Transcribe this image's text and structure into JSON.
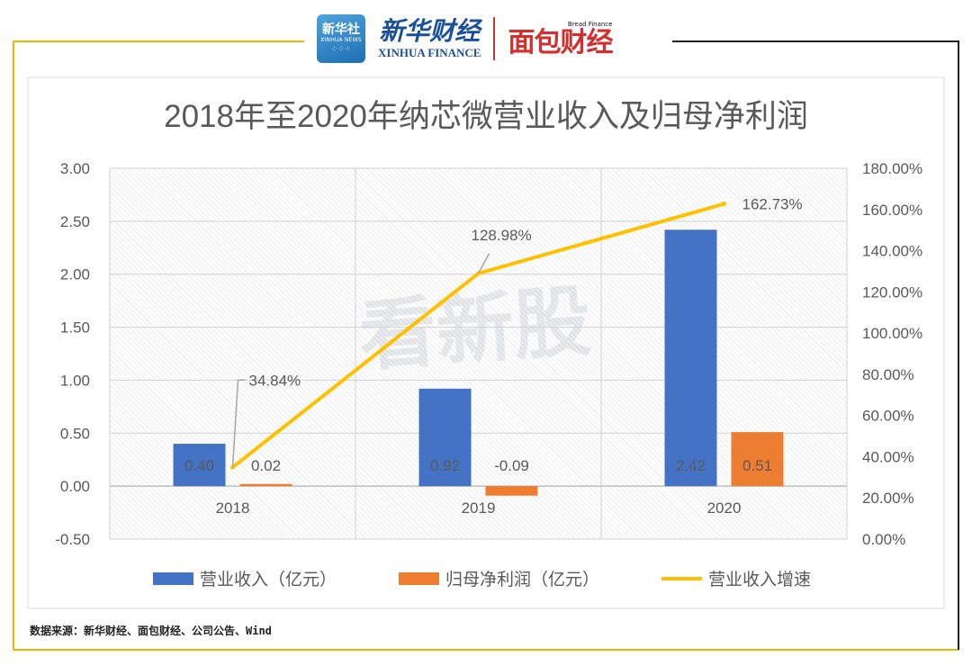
{
  "header": {
    "xinhua_badge": "新华社",
    "xinhua_badge_en": "XINHUA NEWS",
    "xinhua_finance_cn": "新华财经",
    "xinhua_finance_en": "XINHUA FINANCE",
    "bread_finance_en": "Bread Finance",
    "bread_finance_cn": "面包财经"
  },
  "watermark": "看新股",
  "footer": {
    "source": "数据来源：新华财经、面包财经、公司公告、Wind"
  },
  "colors": {
    "revenue": "#4472C4",
    "profit": "#ED7D31",
    "growth": "#FFC000",
    "frame": "#F2B100",
    "axis_text": "#595959"
  },
  "chart_data": {
    "type": "bar",
    "title": "2018年至2020年纳芯微营业收入及归母净利润",
    "categories": [
      "2018",
      "2019",
      "2020"
    ],
    "series": [
      {
        "name": "营业收入（亿元）",
        "kind": "bar",
        "axis": "left",
        "values": [
          0.4,
          0.92,
          2.42
        ],
        "labels": [
          "0.40",
          "0.92",
          "2.42"
        ]
      },
      {
        "name": "归母净利润（亿元）",
        "kind": "bar",
        "axis": "left",
        "values": [
          0.02,
          -0.09,
          0.51
        ],
        "labels": [
          "0.02",
          "-0.09",
          "0.51"
        ]
      },
      {
        "name": "营业收入增速",
        "kind": "line",
        "axis": "right",
        "values": [
          34.84,
          128.98,
          162.73
        ],
        "labels": [
          "34.84%",
          "128.98%",
          "162.73%"
        ]
      }
    ],
    "ylim_left": [
      -0.5,
      3.0
    ],
    "yticks_left": [
      "3.00",
      "2.50",
      "2.00",
      "1.50",
      "1.00",
      "0.50",
      "0.00",
      "-0.50"
    ],
    "ylim_right": [
      0,
      180
    ],
    "yticks_right": [
      "180.00%",
      "160.00%",
      "140.00%",
      "120.00%",
      "100.00%",
      "80.00%",
      "60.00%",
      "40.00%",
      "20.00%",
      "0.00%"
    ],
    "legend": [
      "营业收入（亿元）",
      "归母净利润（亿元）",
      "营业收入增速"
    ],
    "legend_position": "bottom",
    "grid": true
  }
}
